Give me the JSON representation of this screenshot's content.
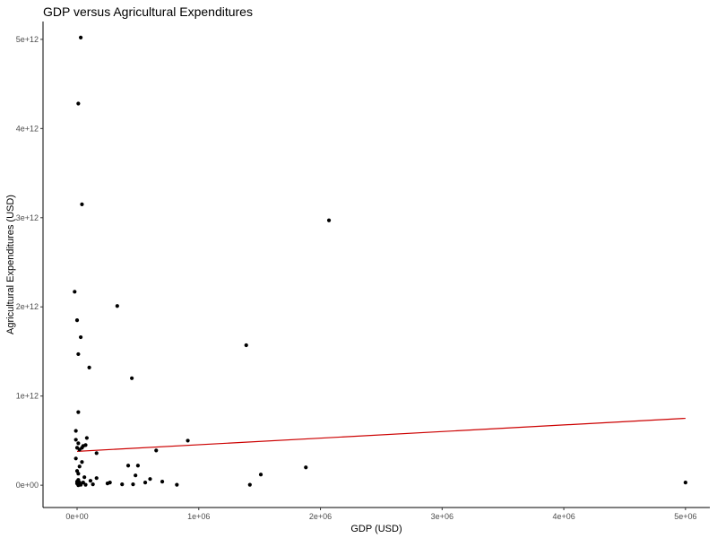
{
  "chart_data": {
    "type": "scatter",
    "title": "GDP versus Agricultural Expenditures",
    "xlabel": "GDP (USD)",
    "ylabel": "Agricultural Expenditures (USD)",
    "xlim": [
      -280000,
      5200000
    ],
    "ylim": [
      -250000000000,
      5200000000000
    ],
    "x_ticks": [
      {
        "value": 0,
        "label": "0e+00"
      },
      {
        "value": 1000000,
        "label": "1e+06"
      },
      {
        "value": 2000000,
        "label": "2e+06"
      },
      {
        "value": 3000000,
        "label": "3e+06"
      },
      {
        "value": 4000000,
        "label": "4e+06"
      },
      {
        "value": 5000000,
        "label": "5e+06"
      }
    ],
    "y_ticks": [
      {
        "value": 0,
        "label": "0e+00"
      },
      {
        "value": 1000000000000,
        "label": "1e+12"
      },
      {
        "value": 2000000000000,
        "label": "2e+12"
      },
      {
        "value": 3000000000000,
        "label": "3e+12"
      },
      {
        "value": 4000000000000,
        "label": "4e+12"
      },
      {
        "value": 5000000000000,
        "label": "5e+12"
      }
    ],
    "grid": false,
    "legend": "none",
    "point_color": "#000000",
    "trend_color": "#cc0000",
    "points": [
      {
        "x": 30000,
        "y": 5020000000000
      },
      {
        "x": 10000,
        "y": 4280000000000
      },
      {
        "x": 40000,
        "y": 3150000000000
      },
      {
        "x": 2070000,
        "y": 2970000000000
      },
      {
        "x": -20000,
        "y": 2170000000000
      },
      {
        "x": 330000,
        "y": 2010000000000
      },
      {
        "x": 0,
        "y": 1850000000000
      },
      {
        "x": 30000,
        "y": 1660000000000
      },
      {
        "x": 1390000,
        "y": 1570000000000
      },
      {
        "x": 10000,
        "y": 1470000000000
      },
      {
        "x": 100000,
        "y": 1320000000000
      },
      {
        "x": 450000,
        "y": 1200000000000
      },
      {
        "x": 10000,
        "y": 820000000000
      },
      {
        "x": -10000,
        "y": 610000000000
      },
      {
        "x": 80000,
        "y": 530000000000
      },
      {
        "x": -10000,
        "y": 510000000000
      },
      {
        "x": 910000,
        "y": 500000000000
      },
      {
        "x": 10000,
        "y": 470000000000
      },
      {
        "x": 70000,
        "y": 450000000000
      },
      {
        "x": 50000,
        "y": 440000000000
      },
      {
        "x": 0,
        "y": 420000000000
      },
      {
        "x": 40000,
        "y": 420000000000
      },
      {
        "x": 20000,
        "y": 400000000000
      },
      {
        "x": 650000,
        "y": 390000000000
      },
      {
        "x": 160000,
        "y": 360000000000
      },
      {
        "x": -10000,
        "y": 300000000000
      },
      {
        "x": 40000,
        "y": 260000000000
      },
      {
        "x": 420000,
        "y": 220000000000
      },
      {
        "x": 500000,
        "y": 220000000000
      },
      {
        "x": 20000,
        "y": 210000000000
      },
      {
        "x": 1880000,
        "y": 200000000000
      },
      {
        "x": 0,
        "y": 160000000000
      },
      {
        "x": 10000,
        "y": 130000000000
      },
      {
        "x": 1510000,
        "y": 120000000000
      },
      {
        "x": 480000,
        "y": 110000000000
      },
      {
        "x": 60000,
        "y": 90000000000
      },
      {
        "x": 160000,
        "y": 80000000000
      },
      {
        "x": 600000,
        "y": 70000000000
      },
      {
        "x": 10000,
        "y": 60000000000
      },
      {
        "x": 110000,
        "y": 50000000000
      },
      {
        "x": 700000,
        "y": 40000000000
      },
      {
        "x": 0,
        "y": 40000000000
      },
      {
        "x": 270000,
        "y": 30000000000
      },
      {
        "x": 20000,
        "y": 30000000000
      },
      {
        "x": 560000,
        "y": 30000000000
      },
      {
        "x": 5000000,
        "y": 30000000000
      },
      {
        "x": 50000,
        "y": 30000000000
      },
      {
        "x": 250000,
        "y": 20000000000
      },
      {
        "x": 0,
        "y": 20000000000
      },
      {
        "x": 130000,
        "y": 10000000000
      },
      {
        "x": 370000,
        "y": 10000000000
      },
      {
        "x": 460000,
        "y": 10000000000
      },
      {
        "x": 820000,
        "y": 5000000000
      },
      {
        "x": 1420000,
        "y": 5000000000
      },
      {
        "x": 70000,
        "y": 5000000000
      },
      {
        "x": 30000,
        "y": 5000000000
      },
      {
        "x": 10000,
        "y": 0
      }
    ],
    "trendline": {
      "x": [
        0,
        5000000
      ],
      "y": [
        380000000000,
        750000000000
      ]
    }
  }
}
